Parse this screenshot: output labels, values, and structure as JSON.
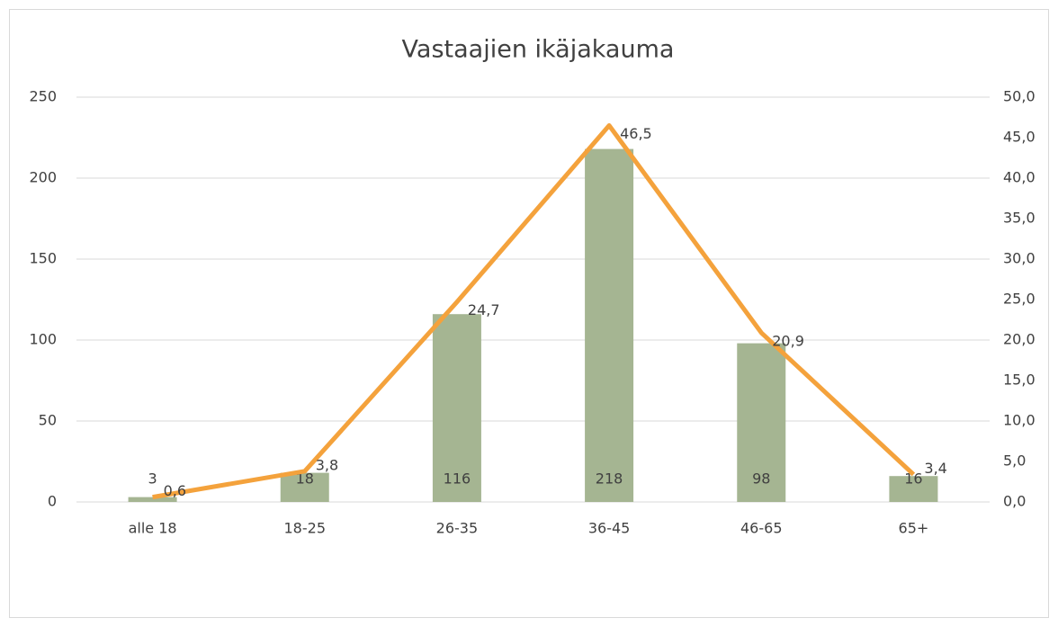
{
  "chart_data": {
    "type": "bar",
    "title": "Vastaajien ikäjakauma",
    "categories": [
      "alle 18",
      "18-25",
      "26-35",
      "36-45",
      "46-65",
      "65+"
    ],
    "series": [
      {
        "type": "bar",
        "color": "#a5b592",
        "values": [
          3,
          18,
          116,
          218,
          98,
          16
        ]
      },
      {
        "type": "line",
        "axis": "y2",
        "color": "#f4a23c",
        "values": [
          0.6,
          3.8,
          24.7,
          46.5,
          20.9,
          3.4
        ],
        "value_labels": [
          "0,6",
          "3,8",
          "24,7",
          "46,5",
          "20,9",
          "3,4"
        ]
      }
    ],
    "ylim": [
      0,
      250
    ],
    "yticks": [
      0,
      50,
      100,
      150,
      200,
      250
    ],
    "y2lim": [
      0,
      50
    ],
    "y2ticks": [
      {
        "value": 0,
        "label": "0,0"
      },
      {
        "value": 5,
        "label": "5,0"
      },
      {
        "value": 10,
        "label": "10,0"
      },
      {
        "value": 15,
        "label": "15,0"
      },
      {
        "value": 20,
        "label": "20,0"
      },
      {
        "value": 25,
        "label": "25,0"
      },
      {
        "value": 30,
        "label": "30,0"
      },
      {
        "value": 35,
        "label": "35,0"
      },
      {
        "value": 40,
        "label": "40,0"
      },
      {
        "value": 45,
        "label": "45,0"
      },
      {
        "value": 50,
        "label": "50,0"
      }
    ],
    "grid": true
  }
}
